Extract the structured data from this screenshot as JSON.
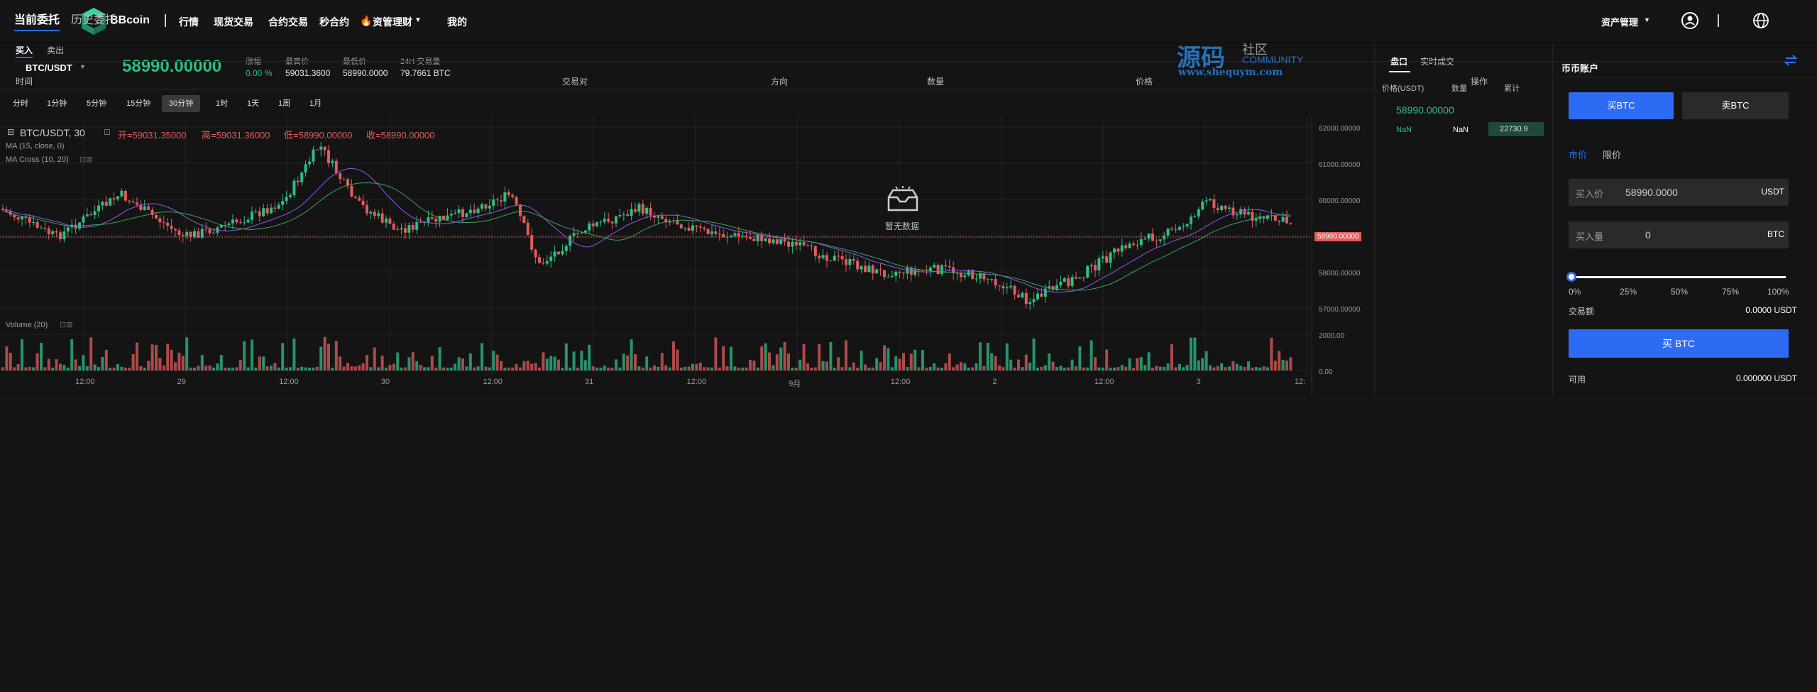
{
  "nav": {
    "brand": "BBcoin",
    "items": [
      "行情",
      "现货交易",
      "合约交易",
      "秒合约",
      "资管理财",
      "我的"
    ],
    "asset_mgmt": "资产管理"
  },
  "ticker": {
    "pair": "BTC/USDT",
    "price": "58990.00000",
    "stats": [
      {
        "label": "涨幅",
        "value": "0.00 %"
      },
      {
        "label": "最高价",
        "value": "59031.3600"
      },
      {
        "label": "最低价",
        "value": "58990.0000"
      },
      {
        "label": "24H 交易量",
        "value": "79.7661 BTC"
      }
    ]
  },
  "intervals": [
    "分时",
    "1分钟",
    "5分钟",
    "15分钟",
    "30分钟",
    "1时",
    "1天",
    "1周",
    "1月"
  ],
  "active_interval": "30分钟",
  "chart": {
    "legend_pair": "BTC/USDT, 30",
    "ohlc": {
      "open": "开=59031.35000",
      "high": "高=59031.36000",
      "low": "低=58990.00000",
      "close": "收=58990.00000"
    },
    "ma_label": "MA (15, close, 0)",
    "cross_label": "MA Cross (10, 20)",
    "volume_label": "Volume (20)",
    "price_axis": [
      "62000.00000",
      "61000.00000",
      "60000.00000",
      "59000.00000",
      "58000.00000",
      "57000.00000"
    ],
    "last_price_tag": "58990.00000",
    "vol_axis": [
      "2000.00",
      "0.00"
    ],
    "time_axis": [
      "12:00",
      "29",
      "12:00",
      "30",
      "12:00",
      "31",
      "12:00",
      "9月",
      "12:00",
      "2",
      "12:00",
      "3",
      "12:"
    ]
  },
  "orderbook": {
    "tabs": [
      "盘口",
      "实时成交"
    ],
    "headers": [
      "价格(USDT)",
      "数量",
      "累计"
    ],
    "mid_price": "58990.00000",
    "row": {
      "price": "NaN",
      "qty": "NaN",
      "total": "22730.9"
    }
  },
  "trade": {
    "title": "币币账户",
    "buy_tab": "买BTC",
    "sell_tab": "卖BTC",
    "order_types": [
      "市价",
      "限价"
    ],
    "price_field": {
      "label": "买入价",
      "value": "58990.0000",
      "unit": "USDT"
    },
    "qty_field": {
      "label": "买入量",
      "value": "0",
      "unit": "BTC"
    },
    "slider_marks": [
      "0%",
      "25%",
      "50%",
      "75%",
      "100%"
    ],
    "amount_label": "交易额",
    "amount_value": "0.0000 USDT",
    "submit": "买 BTC",
    "avail_label": "可用",
    "avail_value": "0.000000 USDT"
  },
  "orders": {
    "tabs": [
      "当前委托",
      "历史委托"
    ],
    "sub_tabs": [
      "买入",
      "卖出"
    ],
    "headers": [
      "时间",
      "交易对",
      "方向",
      "数量",
      "价格",
      "操作"
    ],
    "empty": "暂无数据"
  },
  "watermark": {
    "main": "源码",
    "sub": "社区",
    "en": "COMMUNITY",
    "url": "www.shequym.com"
  },
  "colors": {
    "up": "#2fbd85",
    "down": "#e25c5c",
    "accent": "#2e6bf5"
  }
}
